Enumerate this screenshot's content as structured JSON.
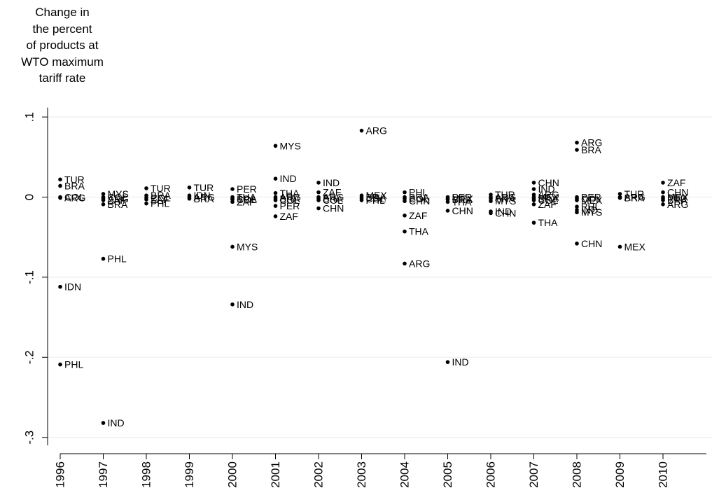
{
  "chart_data": {
    "type": "scatter",
    "title": "",
    "ylabel_lines": [
      "Change in",
      "the percent",
      "of products at",
      "WTO maximum",
      "tariff rate"
    ],
    "xlabel": "",
    "x_ticks": [
      "1996",
      "1997",
      "1998",
      "1999",
      "2000",
      "2001",
      "2002",
      "2003",
      "2004",
      "2005",
      "2006",
      "2007",
      "2008",
      "2009",
      "2010"
    ],
    "y_ticks": [
      0.1,
      0,
      -0.1,
      -0.2,
      -0.3
    ],
    "y_tick_labels": [
      ".1",
      "0",
      "-.1",
      "-.2",
      "-.3"
    ],
    "ylim": [
      -0.31,
      0.11
    ],
    "grid": true,
    "point_color": "#000000",
    "grid_color": "#e6f2f0",
    "points": [
      {
        "x": "1996",
        "y": 0.022,
        "label": "TUR"
      },
      {
        "x": "1996",
        "y": 0.014,
        "label": "BRA"
      },
      {
        "x": "1996",
        "y": 0.0,
        "label": "COL"
      },
      {
        "x": "1996",
        "y": -0.001,
        "label": "ARG"
      },
      {
        "x": "1996",
        "y": -0.112,
        "label": "IDN"
      },
      {
        "x": "1996",
        "y": -0.209,
        "label": "PHL"
      },
      {
        "x": "1997",
        "y": 0.004,
        "label": "MYS"
      },
      {
        "x": "1997",
        "y": 0.0,
        "label": "COL"
      },
      {
        "x": "1997",
        "y": -0.002,
        "label": "ARG"
      },
      {
        "x": "1997",
        "y": -0.004,
        "label": "ZAF"
      },
      {
        "x": "1997",
        "y": -0.009,
        "label": "BRA"
      },
      {
        "x": "1997",
        "y": -0.077,
        "label": "PHL"
      },
      {
        "x": "1997",
        "y": -0.282,
        "label": "IND"
      },
      {
        "x": "1998",
        "y": 0.011,
        "label": "TUR"
      },
      {
        "x": "1998",
        "y": 0.002,
        "label": "BRA"
      },
      {
        "x": "1998",
        "y": -0.001,
        "label": "COL"
      },
      {
        "x": "1998",
        "y": -0.003,
        "label": "ZAF"
      },
      {
        "x": "1998",
        "y": -0.008,
        "label": "PHL"
      },
      {
        "x": "1999",
        "y": 0.012,
        "label": "TUR"
      },
      {
        "x": "1999",
        "y": 0.002,
        "label": "IDN"
      },
      {
        "x": "1999",
        "y": 0.0,
        "label": "ARG"
      },
      {
        "x": "1999",
        "y": -0.002,
        "label": "BRA"
      },
      {
        "x": "2000",
        "y": 0.01,
        "label": "PER"
      },
      {
        "x": "2000",
        "y": 0.0,
        "label": "THA"
      },
      {
        "x": "2000",
        "y": -0.002,
        "label": "BRA"
      },
      {
        "x": "2000",
        "y": -0.003,
        "label": "COL"
      },
      {
        "x": "2000",
        "y": -0.006,
        "label": "ZAF"
      },
      {
        "x": "2000",
        "y": -0.062,
        "label": "MYS"
      },
      {
        "x": "2000",
        "y": -0.134,
        "label": "IND"
      },
      {
        "x": "2001",
        "y": 0.064,
        "label": "MYS"
      },
      {
        "x": "2001",
        "y": 0.023,
        "label": "IND"
      },
      {
        "x": "2001",
        "y": 0.005,
        "label": "THA"
      },
      {
        "x": "2001",
        "y": 0.0,
        "label": "ARG"
      },
      {
        "x": "2001",
        "y": -0.002,
        "label": "BRA"
      },
      {
        "x": "2001",
        "y": -0.004,
        "label": "COL"
      },
      {
        "x": "2001",
        "y": -0.011,
        "label": "PER"
      },
      {
        "x": "2001",
        "y": -0.024,
        "label": "ZAF"
      },
      {
        "x": "2002",
        "y": 0.018,
        "label": "IND"
      },
      {
        "x": "2002",
        "y": 0.006,
        "label": "ZAF"
      },
      {
        "x": "2002",
        "y": 0.0,
        "label": "ARG"
      },
      {
        "x": "2002",
        "y": -0.002,
        "label": "BRA"
      },
      {
        "x": "2002",
        "y": -0.004,
        "label": "COL"
      },
      {
        "x": "2002",
        "y": -0.014,
        "label": "CHN"
      },
      {
        "x": "2003",
        "y": 0.083,
        "label": "ARG"
      },
      {
        "x": "2003",
        "y": 0.002,
        "label": "MEX"
      },
      {
        "x": "2003",
        "y": 0.0,
        "label": "BRA"
      },
      {
        "x": "2003",
        "y": -0.002,
        "label": "COL"
      },
      {
        "x": "2003",
        "y": -0.004,
        "label": "PHL"
      },
      {
        "x": "2004",
        "y": 0.006,
        "label": "PHL"
      },
      {
        "x": "2004",
        "y": 0.0,
        "label": "BRA"
      },
      {
        "x": "2004",
        "y": -0.002,
        "label": "COL"
      },
      {
        "x": "2004",
        "y": -0.005,
        "label": "CHN"
      },
      {
        "x": "2004",
        "y": -0.023,
        "label": "ZAF"
      },
      {
        "x": "2004",
        "y": -0.043,
        "label": "THA"
      },
      {
        "x": "2004",
        "y": -0.083,
        "label": "ARG"
      },
      {
        "x": "2005",
        "y": 0.0,
        "label": "PER"
      },
      {
        "x": "2005",
        "y": -0.002,
        "label": "MEX"
      },
      {
        "x": "2005",
        "y": -0.003,
        "label": "BRA"
      },
      {
        "x": "2005",
        "y": -0.006,
        "label": "THA"
      },
      {
        "x": "2005",
        "y": -0.017,
        "label": "CHN"
      },
      {
        "x": "2005",
        "y": -0.206,
        "label": "IND"
      },
      {
        "x": "2006",
        "y": 0.003,
        "label": "TUR"
      },
      {
        "x": "2006",
        "y": 0.0,
        "label": "ARG"
      },
      {
        "x": "2006",
        "y": -0.002,
        "label": "BRA"
      },
      {
        "x": "2006",
        "y": -0.005,
        "label": "MYS"
      },
      {
        "x": "2006",
        "y": -0.018,
        "label": "IND"
      },
      {
        "x": "2006",
        "y": -0.02,
        "label": "CHN"
      },
      {
        "x": "2007",
        "y": 0.018,
        "label": "CHN"
      },
      {
        "x": "2007",
        "y": 0.01,
        "label": "IND"
      },
      {
        "x": "2007",
        "y": 0.003,
        "label": "ARG"
      },
      {
        "x": "2007",
        "y": 0.0,
        "label": "MEX"
      },
      {
        "x": "2007",
        "y": -0.002,
        "label": "BRA"
      },
      {
        "x": "2007",
        "y": -0.004,
        "label": "COL"
      },
      {
        "x": "2007",
        "y": -0.009,
        "label": "ZAF"
      },
      {
        "x": "2007",
        "y": -0.032,
        "label": "THA"
      },
      {
        "x": "2008",
        "y": 0.068,
        "label": "ARG"
      },
      {
        "x": "2008",
        "y": 0.059,
        "label": "BRA"
      },
      {
        "x": "2008",
        "y": 0.0,
        "label": "PER"
      },
      {
        "x": "2008",
        "y": -0.002,
        "label": "COL"
      },
      {
        "x": "2008",
        "y": -0.004,
        "label": "MEX"
      },
      {
        "x": "2008",
        "y": -0.012,
        "label": "PHL"
      },
      {
        "x": "2008",
        "y": -0.016,
        "label": "IND"
      },
      {
        "x": "2008",
        "y": -0.019,
        "label": "MYS"
      },
      {
        "x": "2008",
        "y": -0.058,
        "label": "CHN"
      },
      {
        "x": "2009",
        "y": 0.004,
        "label": "TUR"
      },
      {
        "x": "2009",
        "y": 0.0,
        "label": "ARG"
      },
      {
        "x": "2009",
        "y": -0.001,
        "label": "BRA"
      },
      {
        "x": "2009",
        "y": -0.062,
        "label": "MEX"
      },
      {
        "x": "2010",
        "y": 0.018,
        "label": "ZAF"
      },
      {
        "x": "2010",
        "y": 0.006,
        "label": "CHN"
      },
      {
        "x": "2010",
        "y": 0.0,
        "label": "MEX"
      },
      {
        "x": "2010",
        "y": -0.002,
        "label": "PER"
      },
      {
        "x": "2010",
        "y": -0.004,
        "label": "BRA"
      },
      {
        "x": "2010",
        "y": -0.009,
        "label": "ARG"
      }
    ]
  }
}
